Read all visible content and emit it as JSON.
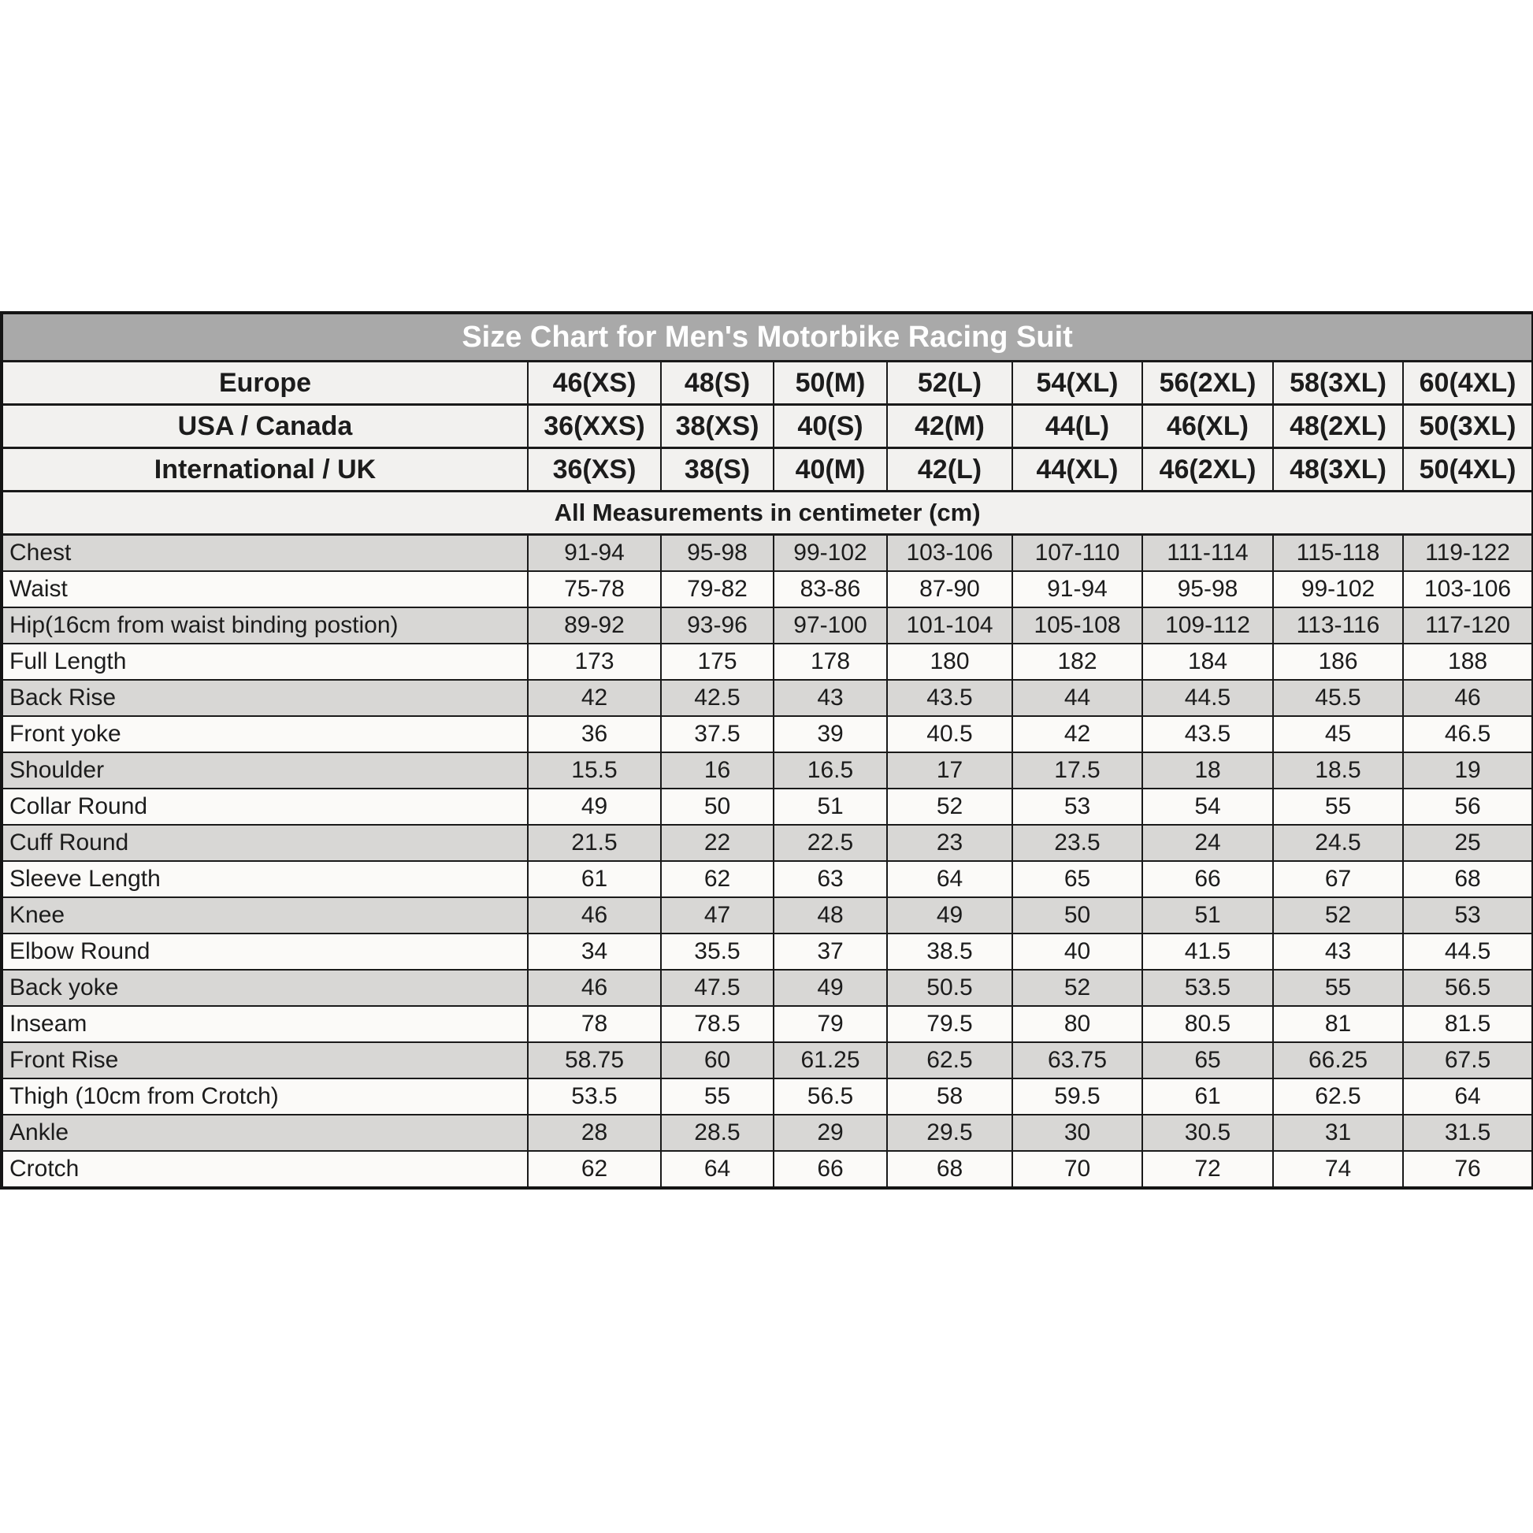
{
  "chart_data": {
    "type": "table",
    "title": "Size Chart for Men's Motorbike Racing Suit",
    "units_note": "All Measurements in centimeter (cm)",
    "columns_note": "first column is measurement label, then 8 size columns",
    "size_systems": [
      {
        "label": "Europe",
        "values": [
          "46(XS)",
          "48(S)",
          "50(M)",
          "52(L)",
          "54(XL)",
          "56(2XL)",
          "58(3XL)",
          "60(4XL)"
        ]
      },
      {
        "label": "USA / Canada",
        "values": [
          "36(XXS)",
          "38(XS)",
          "40(S)",
          "42(M)",
          "44(L)",
          "46(XL)",
          "48(2XL)",
          "50(3XL)"
        ]
      },
      {
        "label": "International / UK",
        "values": [
          "36(XS)",
          "38(S)",
          "40(M)",
          "42(L)",
          "44(XL)",
          "46(2XL)",
          "48(3XL)",
          "50(4XL)"
        ]
      }
    ],
    "rows": [
      {
        "label": "Chest",
        "shaded": true,
        "values": [
          "91-94",
          "95-98",
          "99-102",
          "103-106",
          "107-110",
          "111-114",
          "115-118",
          "119-122"
        ]
      },
      {
        "label": "Waist",
        "shaded": false,
        "values": [
          "75-78",
          "79-82",
          "83-86",
          "87-90",
          "91-94",
          "95-98",
          "99-102",
          "103-106"
        ]
      },
      {
        "label": "Hip(16cm from waist binding postion)",
        "shaded": true,
        "values": [
          "89-92",
          "93-96",
          "97-100",
          "101-104",
          "105-108",
          "109-112",
          "113-116",
          "117-120"
        ]
      },
      {
        "label": "Full Length",
        "shaded": false,
        "values": [
          "173",
          "175",
          "178",
          "180",
          "182",
          "184",
          "186",
          "188"
        ]
      },
      {
        "label": "Back Rise",
        "shaded": true,
        "values": [
          "42",
          "42.5",
          "43",
          "43.5",
          "44",
          "44.5",
          "45.5",
          "46"
        ]
      },
      {
        "label": "Front yoke",
        "shaded": false,
        "values": [
          "36",
          "37.5",
          "39",
          "40.5",
          "42",
          "43.5",
          "45",
          "46.5"
        ]
      },
      {
        "label": "Shoulder",
        "shaded": true,
        "values": [
          "15.5",
          "16",
          "16.5",
          "17",
          "17.5",
          "18",
          "18.5",
          "19"
        ]
      },
      {
        "label": "Collar Round",
        "shaded": false,
        "values": [
          "49",
          "50",
          "51",
          "52",
          "53",
          "54",
          "55",
          "56"
        ]
      },
      {
        "label": "Cuff Round",
        "shaded": true,
        "values": [
          "21.5",
          "22",
          "22.5",
          "23",
          "23.5",
          "24",
          "24.5",
          "25"
        ]
      },
      {
        "label": "Sleeve Length",
        "shaded": false,
        "values": [
          "61",
          "62",
          "63",
          "64",
          "65",
          "66",
          "67",
          "68"
        ]
      },
      {
        "label": "Knee",
        "shaded": true,
        "values": [
          "46",
          "47",
          "48",
          "49",
          "50",
          "51",
          "52",
          "53"
        ]
      },
      {
        "label": "Elbow Round",
        "shaded": false,
        "values": [
          "34",
          "35.5",
          "37",
          "38.5",
          "40",
          "41.5",
          "43",
          "44.5"
        ]
      },
      {
        "label": "Back yoke",
        "shaded": true,
        "values": [
          "46",
          "47.5",
          "49",
          "50.5",
          "52",
          "53.5",
          "55",
          "56.5"
        ]
      },
      {
        "label": "Inseam",
        "shaded": false,
        "values": [
          "78",
          "78.5",
          "79",
          "79.5",
          "80",
          "80.5",
          "81",
          "81.5"
        ]
      },
      {
        "label": "Front Rise",
        "shaded": true,
        "values": [
          "58.75",
          "60",
          "61.25",
          "62.5",
          "63.75",
          "65",
          "66.25",
          "67.5"
        ]
      },
      {
        "label": "Thigh (10cm from Crotch)",
        "shaded": false,
        "values": [
          "53.5",
          "55",
          "56.5",
          "58",
          "59.5",
          "61",
          "62.5",
          "64"
        ]
      },
      {
        "label": "Ankle",
        "shaded": true,
        "values": [
          "28",
          "28.5",
          "29",
          "29.5",
          "30",
          "30.5",
          "31",
          "31.5"
        ]
      },
      {
        "label": "Crotch",
        "shaded": false,
        "values": [
          "62",
          "64",
          "66",
          "68",
          "70",
          "72",
          "74",
          "76"
        ]
      }
    ],
    "layout": {
      "colors": {
        "title_bg": "#a9a9a9",
        "title_text": "#ffffff",
        "shaded_row_bg": "#d8d7d5",
        "light_row_bg": "#fbfaf8",
        "header_row_bg": "#f2f1ef",
        "border": "#1a1a1a"
      }
    }
  }
}
